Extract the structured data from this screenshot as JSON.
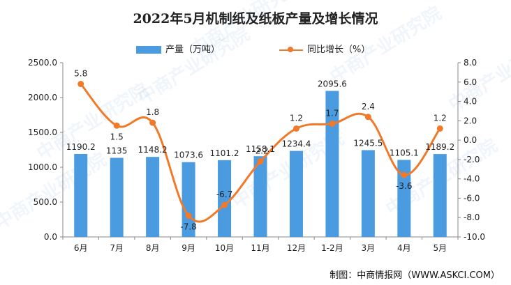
{
  "title": "2022年5月机制纸及纸板产量及增长情况",
  "source": "制图：中商情报网（WWW.ASKCI.COM）",
  "chart_data": {
    "type": "bar",
    "categories": [
      "6月",
      "7月",
      "8月",
      "9月",
      "10月",
      "11月",
      "12月",
      "1-2月",
      "3月",
      "4月",
      "5月"
    ],
    "series": [
      {
        "name": "产量（万吨）",
        "type": "bar",
        "axis": "left",
        "color": "#4a9be0",
        "values": [
          1190.2,
          1135,
          1148.2,
          1073.6,
          1101.2,
          1158.1,
          1234.4,
          2095.6,
          1245.5,
          1105.1,
          1189.2
        ],
        "labels": [
          "1190.2",
          "1135",
          "1148.2",
          "1073.6",
          "1101.2",
          "1158.1",
          "1234.4",
          "2095.6",
          "1245.5",
          "1105.1",
          "1189.2"
        ]
      },
      {
        "name": "同比增长（%）",
        "type": "line",
        "axis": "right",
        "color": "#f07a2a",
        "values": [
          5.8,
          1.5,
          1.8,
          -7.8,
          -6.7,
          -2.2,
          1.2,
          1.7,
          2.4,
          -3.6,
          1.2
        ],
        "labels": [
          "5.8",
          "1.5",
          "1.8",
          "-7.8",
          "-6.7",
          "-2.2",
          "1.2",
          "1.7",
          "2.4",
          "-3.6",
          "1.2"
        ]
      }
    ],
    "y_left": {
      "min": 0,
      "max": 2500,
      "ticks": [
        0,
        500,
        1000,
        1500,
        2000,
        2500
      ],
      "tick_labels": [
        "0.0",
        "500.0",
        "1000.0",
        "1500.0",
        "2000.0",
        "2500.0"
      ]
    },
    "y_right": {
      "min": -10,
      "max": 8,
      "ticks": [
        -10,
        -8,
        -6,
        -4,
        -2,
        0,
        2,
        4,
        6,
        8
      ],
      "tick_labels": [
        "-10.0",
        "-8.0",
        "-6.0",
        "-4.0",
        "-2.0",
        "0.0",
        "2.0",
        "4.0",
        "6.0",
        "8.0"
      ]
    },
    "grid": false,
    "legend_position": "top-center",
    "watermark": "中商产业研究院"
  }
}
